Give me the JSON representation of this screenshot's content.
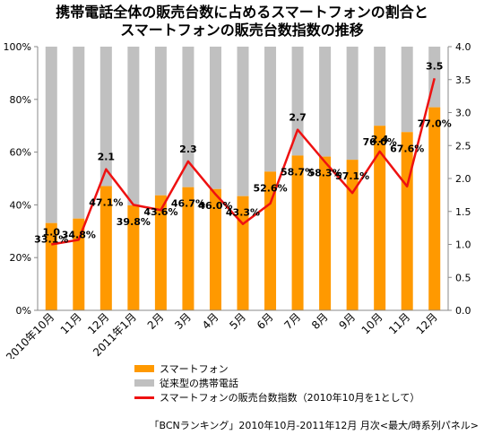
{
  "title_line1": "携帯電話全体の販売台数に占めるスマートフォンの割合と",
  "title_line2": "スマートフォンの販売台数指数の推移",
  "source": "「BCNランキング」2010年10月-2011年12月 月次<最大/時系列パネル>",
  "colors": {
    "smartphone": "#ff9900",
    "feature": "#c0c0c0",
    "index": "#ee1111"
  },
  "chart_data": {
    "type": "bar",
    "categories": [
      "2010年10月",
      "11月",
      "12月",
      "2011年1月",
      "2月",
      "3月",
      "4月",
      "5月",
      "6月",
      "7月",
      "8月",
      "9月",
      "10月",
      "11月",
      "12月"
    ],
    "series": [
      {
        "name": "スマートフォン",
        "type": "bar",
        "stacked": true,
        "axis": "left",
        "values": [
          33.1,
          34.8,
          47.1,
          39.8,
          43.6,
          46.7,
          46.0,
          43.3,
          52.6,
          58.7,
          58.3,
          57.1,
          70.0,
          67.6,
          77.0
        ],
        "labels": [
          "33.1%",
          "34.8%",
          "47.1%",
          "39.8%",
          "43.6%",
          "46.7%",
          "46.0%",
          "43.3%",
          "52.6%",
          "58.7%",
          "58.3%",
          "57.1%",
          "70.0%",
          "67.6%",
          "77.0%"
        ]
      },
      {
        "name": "従来型の携帯電話",
        "type": "bar",
        "stacked": true,
        "axis": "left",
        "values": [
          66.9,
          65.2,
          52.9,
          60.2,
          56.4,
          53.3,
          54.0,
          56.7,
          47.4,
          41.3,
          41.7,
          42.9,
          30.0,
          32.4,
          23.0
        ]
      },
      {
        "name": "スマートフォンの販売台数指数（2010年10月を1として）",
        "type": "line",
        "axis": "right",
        "values": [
          1.0,
          1.07,
          2.14,
          1.6,
          1.52,
          2.26,
          1.76,
          1.31,
          1.62,
          2.74,
          2.25,
          1.78,
          2.41,
          1.88,
          3.52
        ],
        "labels": [
          "1.0",
          "",
          "2.1",
          "",
          "",
          "2.3",
          "",
          "",
          "",
          "2.7",
          "",
          "",
          "2.4",
          "",
          "3.5"
        ]
      }
    ],
    "y_left": {
      "range": [
        0,
        100
      ],
      "ticks": [
        "0%",
        "20%",
        "40%",
        "60%",
        "80%",
        "100%"
      ]
    },
    "y_right": {
      "range": [
        0,
        4
      ],
      "ticks": [
        "0.0",
        "0.5",
        "1.0",
        "1.5",
        "2.0",
        "2.5",
        "3.0",
        "3.5",
        "4.0"
      ]
    },
    "grid": false,
    "legend_position": "bottom"
  }
}
